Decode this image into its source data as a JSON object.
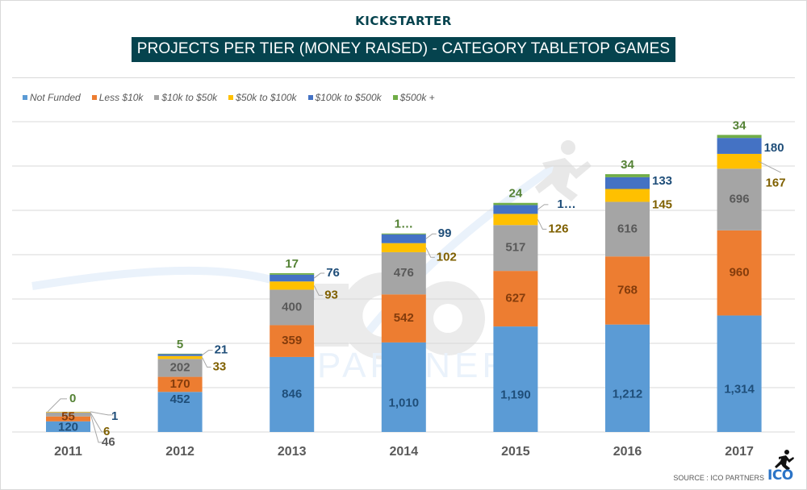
{
  "brand": "KICKSTARTER",
  "watermark": {
    "logo_text": "ICO",
    "sub_text": "PARTNERS"
  },
  "source": "SOURCE : ICO PARTNERS",
  "footer_logo": "ICO",
  "colors": {
    "title_bg": "#05434e",
    "Not Funded": "#5b9bd5",
    "Less $10k": "#ed7d31",
    "$10k to $50k": "#a5a5a5",
    "$50k to $100k": "#ffc000",
    "$100k to $500k": "#4472c4",
    "$500k +": "#70ad47"
  },
  "chart_data": {
    "type": "bar",
    "stacked": true,
    "title": "PROJECTS PER TIER (MONEY RAISED) - CATEGORY TABLETOP GAMES",
    "xlabel": "",
    "ylabel": "",
    "ylim": [
      0,
      3500
    ],
    "yticks": [
      0,
      500,
      1000,
      1500,
      2000,
      2500,
      3000,
      3500
    ],
    "grid": true,
    "legend_position": "top-left",
    "categories": [
      "2011",
      "2012",
      "2013",
      "2014",
      "2015",
      "2016",
      "2017"
    ],
    "series": [
      {
        "name": "Not Funded",
        "color": "#5b9bd5",
        "label_color": "#1f4e79",
        "values": [
          120,
          452,
          846,
          1010,
          1190,
          1212,
          1314
        ],
        "labels": [
          "120",
          "452",
          "846",
          "1,010",
          "1,190",
          "1,212",
          "1,314"
        ]
      },
      {
        "name": "Less $10k",
        "color": "#ed7d31",
        "label_color": "#843c0c",
        "values": [
          55,
          170,
          359,
          542,
          627,
          768,
          960
        ],
        "labels": [
          "55",
          "170",
          "359",
          "542",
          "627",
          "768",
          "960"
        ]
      },
      {
        "name": "$10k to $50k",
        "color": "#a5a5a5",
        "label_color": "#595959",
        "values": [
          46,
          202,
          400,
          476,
          517,
          616,
          696
        ],
        "labels": [
          "46",
          "202",
          "400",
          "476",
          "517",
          "616",
          "696"
        ]
      },
      {
        "name": "$50k to $100k",
        "color": "#ffc000",
        "label_color": "#7f6000",
        "values": [
          6,
          33,
          93,
          102,
          126,
          145,
          167
        ],
        "labels": [
          "6",
          "33",
          "93",
          "102",
          "126",
          "145",
          "167"
        ]
      },
      {
        "name": "$100k to $500k",
        "color": "#4472c4",
        "label_color": "#1f4e79",
        "values": [
          1,
          21,
          76,
          99,
          100,
          133,
          180
        ],
        "labels": [
          "1",
          "21",
          "76",
          "99",
          "1…",
          "133",
          "180"
        ]
      },
      {
        "name": "$500k +",
        "color": "#70ad47",
        "label_color": "#548235",
        "values": [
          0,
          5,
          17,
          10,
          24,
          34,
          34
        ],
        "labels": [
          "0",
          "5",
          "17",
          "1…",
          "24",
          "34",
          "34"
        ]
      }
    ]
  }
}
